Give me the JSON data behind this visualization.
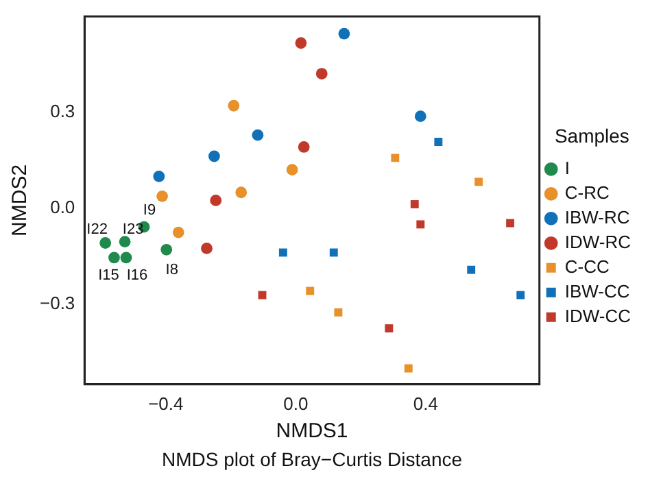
{
  "chart_data": {
    "type": "scatter",
    "title": "NMDS plot of Bray−Curtis Distance",
    "xlabel": "NMDS1",
    "ylabel": "NMDS2",
    "legend_title": "Samples",
    "legend": "right",
    "grid": false,
    "xlim": [
      -0.65,
      0.75
    ],
    "ylim": [
      -0.55,
      0.6
    ],
    "xticks": [
      {
        "value": -0.4,
        "label": "−0.4"
      },
      {
        "value": 0,
        "label": "0.0"
      },
      {
        "value": 0.4,
        "label": "0.4"
      }
    ],
    "yticks": [
      {
        "value": -0.3,
        "label": "−0.3"
      },
      {
        "value": 0,
        "label": "0.0"
      },
      {
        "value": 0.3,
        "label": "0.3"
      }
    ],
    "series": [
      {
        "name": "I",
        "color": "#1f8a4c",
        "marker": "circle",
        "x": [
          -0.586,
          -0.526,
          -0.467,
          -0.559,
          -0.522,
          -0.398
        ],
        "values": [
          -0.108,
          -0.104,
          -0.058,
          -0.154,
          -0.154,
          -0.129
        ]
      },
      {
        "name": "C-RC",
        "color": "#e8902a",
        "marker": "circle",
        "x": [
          -0.191,
          -0.411,
          -0.361,
          -0.168,
          -0.011
        ],
        "values": [
          0.321,
          0.038,
          -0.075,
          0.05,
          0.121
        ]
      },
      {
        "name": "IBW-RC",
        "color": "#1070b8",
        "marker": "circle",
        "x": [
          0.149,
          0.384,
          -0.117,
          -0.251,
          -0.421
        ],
        "values": [
          0.546,
          0.288,
          0.229,
          0.163,
          0.1
        ]
      },
      {
        "name": "IDW-RC",
        "color": "#c0392b",
        "marker": "circle",
        "x": [
          0.016,
          0.08,
          0.025,
          -0.246,
          -0.274
        ],
        "values": [
          0.517,
          0.421,
          0.192,
          0.025,
          -0.125
        ]
      },
      {
        "name": "C-CC",
        "color": "#e8902a",
        "marker": "square",
        "x": [
          0.306,
          0.563,
          0.044,
          0.131,
          0.347
        ],
        "values": [
          0.158,
          0.083,
          -0.258,
          -0.325,
          -0.5
        ]
      },
      {
        "name": "IBW-CC",
        "color": "#1070b8",
        "marker": "square",
        "x": [
          0.439,
          -0.039,
          0.117,
          0.54,
          0.692
        ],
        "values": [
          0.208,
          -0.138,
          -0.138,
          -0.192,
          -0.271
        ]
      },
      {
        "name": "IDW-CC",
        "color": "#c0392b",
        "marker": "square",
        "x": [
          0.366,
          0.384,
          -0.103,
          0.287,
          0.66
        ],
        "values": [
          0.013,
          -0.05,
          -0.271,
          -0.375,
          -0.046
        ]
      }
    ],
    "annotations": [
      {
        "text": "I22",
        "x": -0.586,
        "y": -0.108
      },
      {
        "text": "I23",
        "x": -0.526,
        "y": -0.104
      },
      {
        "text": "I9",
        "x": -0.467,
        "y": -0.058
      },
      {
        "text": "I15",
        "x": -0.559,
        "y": -0.154
      },
      {
        "text": "I16",
        "x": -0.522,
        "y": -0.154
      },
      {
        "text": "I8",
        "x": -0.398,
        "y": -0.129
      }
    ]
  }
}
